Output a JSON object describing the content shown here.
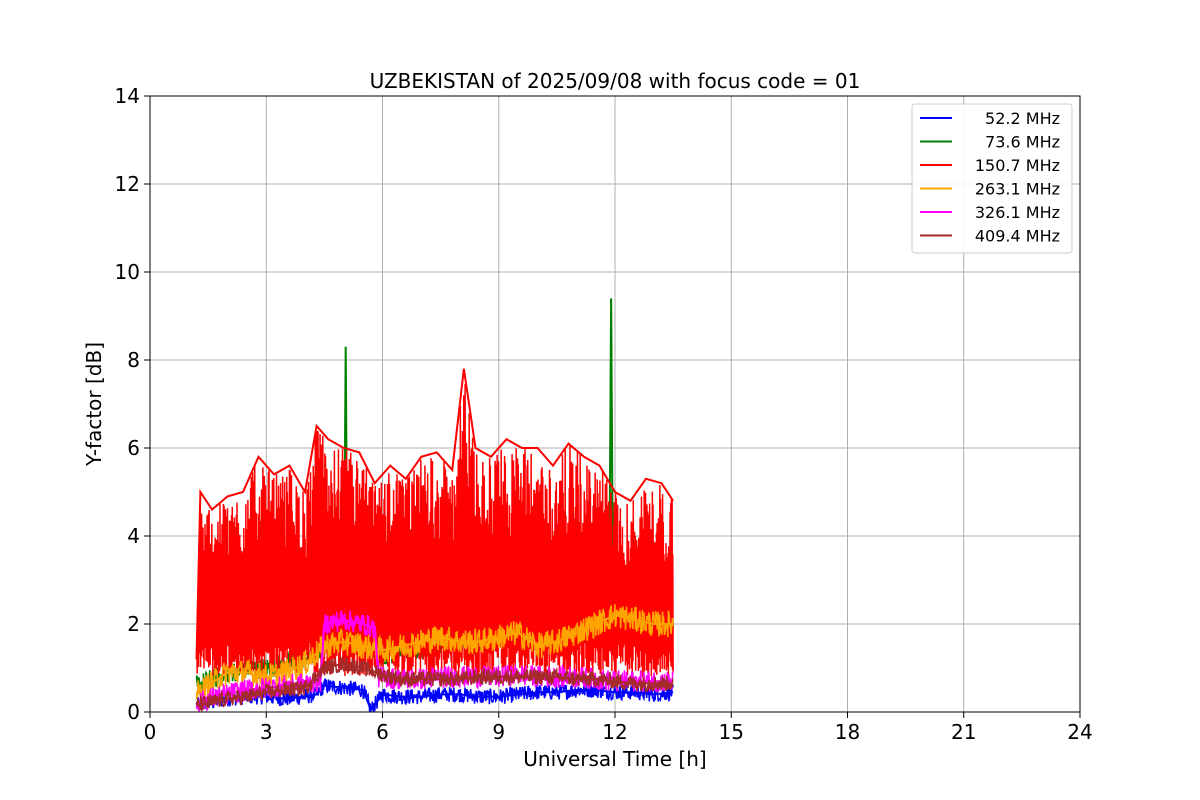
{
  "chart_data": {
    "type": "line",
    "title": "UZBEKISTAN of 2025/09/08 with focus code = 01",
    "xlabel": "Universal Time [h]",
    "ylabel": "Y-factor [dB]",
    "xlim": [
      0,
      24
    ],
    "ylim": [
      0,
      14
    ],
    "xticks": [
      0,
      3,
      6,
      9,
      12,
      15,
      18,
      21,
      24
    ],
    "yticks": [
      0,
      2,
      4,
      6,
      8,
      10,
      12,
      14
    ],
    "grid": true,
    "legend_position": "top-right",
    "data_range_x": [
      1.2,
      13.5
    ],
    "series": [
      {
        "name": "52.2 MHz",
        "color": "#0000ff",
        "x": [
          1.2,
          1.5,
          2,
          2.5,
          3,
          3.5,
          4,
          4.3,
          4.5,
          5,
          5.5,
          5.7,
          6,
          6.5,
          7,
          7.5,
          8,
          8.5,
          9,
          9.5,
          10,
          10.5,
          11,
          11.5,
          12,
          12.5,
          13,
          13.5
        ],
        "values": [
          0.15,
          0.2,
          0.3,
          0.35,
          0.35,
          0.3,
          0.35,
          0.4,
          0.6,
          0.55,
          0.5,
          0.05,
          0.4,
          0.35,
          0.35,
          0.4,
          0.4,
          0.35,
          0.35,
          0.4,
          0.45,
          0.45,
          0.5,
          0.5,
          0.45,
          0.45,
          0.4,
          0.45
        ]
      },
      {
        "name": "73.6 MHz",
        "color": "#008000",
        "x": [
          1.2,
          1.5,
          2,
          2.5,
          3,
          3.5,
          4,
          4.5,
          5,
          5.05,
          5.1,
          5.5,
          6,
          6.5,
          7,
          7.5,
          8,
          8.5,
          9,
          9.5,
          10,
          10.5,
          11,
          11.5,
          11.85,
          11.9,
          11.95,
          12.5,
          13,
          13.5
        ],
        "values": [
          0.6,
          0.7,
          0.9,
          1.0,
          1.0,
          1.1,
          1.2,
          1.5,
          1.7,
          8.3,
          1.8,
          1.7,
          1.3,
          1.4,
          1.4,
          1.5,
          1.6,
          1.6,
          1.7,
          1.8,
          1.6,
          1.7,
          2.0,
          2.1,
          2.2,
          9.4,
          2.2,
          2.1,
          2.0,
          2.0
        ]
      },
      {
        "name": "150.7 MHz",
        "color": "#ff0000",
        "x": [
          1.2,
          1.3,
          1.6,
          2,
          2.4,
          2.8,
          3.2,
          3.6,
          4,
          4.3,
          4.6,
          5,
          5.4,
          5.8,
          6.2,
          6.6,
          7,
          7.4,
          7.8,
          8.1,
          8.4,
          8.8,
          9.2,
          9.6,
          10,
          10.4,
          10.8,
          11.2,
          11.6,
          12,
          12.4,
          12.8,
          13.2,
          13.5
        ],
        "values": [
          1.2,
          5.0,
          4.6,
          4.9,
          5.0,
          5.8,
          5.4,
          5.6,
          5.0,
          6.5,
          6.2,
          6.0,
          5.9,
          5.2,
          5.6,
          5.3,
          5.8,
          5.9,
          5.5,
          7.8,
          6.0,
          5.8,
          6.2,
          6.0,
          6.0,
          5.6,
          6.1,
          5.8,
          5.6,
          5.0,
          4.8,
          5.3,
          5.2,
          4.8
        ]
      },
      {
        "name": "263.1 MHz",
        "color": "#ffa500",
        "x": [
          1.2,
          1.5,
          2,
          2.5,
          3,
          3.5,
          4,
          4.5,
          5,
          5.5,
          6,
          6.5,
          7,
          7.5,
          8,
          8.5,
          9,
          9.5,
          10,
          10.5,
          11,
          11.5,
          12,
          12.5,
          13,
          13.5
        ],
        "values": [
          0.4,
          0.6,
          0.9,
          0.9,
          0.8,
          0.9,
          1.1,
          1.5,
          1.6,
          1.5,
          1.4,
          1.5,
          1.6,
          1.7,
          1.6,
          1.6,
          1.7,
          1.8,
          1.5,
          1.6,
          1.8,
          2.0,
          2.2,
          2.1,
          2.0,
          2.0
        ]
      },
      {
        "name": "326.1 MHz",
        "color": "#ff00ff",
        "x": [
          1.2,
          1.5,
          2,
          2.5,
          3,
          3.5,
          4,
          4.4,
          4.5,
          5,
          5.5,
          5.8,
          5.9,
          6.5,
          7,
          7.5,
          8,
          8.5,
          9,
          9.5,
          10,
          10.5,
          11,
          11.5,
          12,
          12.5,
          13,
          13.5
        ],
        "values": [
          0.2,
          0.3,
          0.4,
          0.5,
          0.55,
          0.6,
          0.65,
          0.7,
          2.0,
          2.1,
          2.0,
          1.9,
          0.8,
          0.75,
          0.75,
          0.8,
          0.8,
          0.8,
          0.8,
          0.85,
          0.8,
          0.8,
          0.8,
          0.75,
          0.7,
          0.7,
          0.7,
          0.7
        ]
      },
      {
        "name": "409.4 MHz",
        "color": "#a52a2a",
        "x": [
          1.2,
          1.5,
          2,
          2.5,
          3,
          3.5,
          4,
          4.5,
          5,
          5.5,
          6,
          6.5,
          7,
          7.5,
          8,
          8.5,
          9,
          9.5,
          10,
          10.5,
          11,
          11.5,
          12,
          12.5,
          13,
          13.5
        ],
        "values": [
          0.15,
          0.2,
          0.3,
          0.35,
          0.45,
          0.5,
          0.55,
          1.0,
          1.1,
          1.0,
          0.85,
          0.75,
          0.75,
          0.75,
          0.75,
          0.8,
          0.8,
          0.8,
          0.8,
          0.8,
          0.75,
          0.75,
          0.7,
          0.65,
          0.65,
          0.65
        ]
      }
    ]
  }
}
